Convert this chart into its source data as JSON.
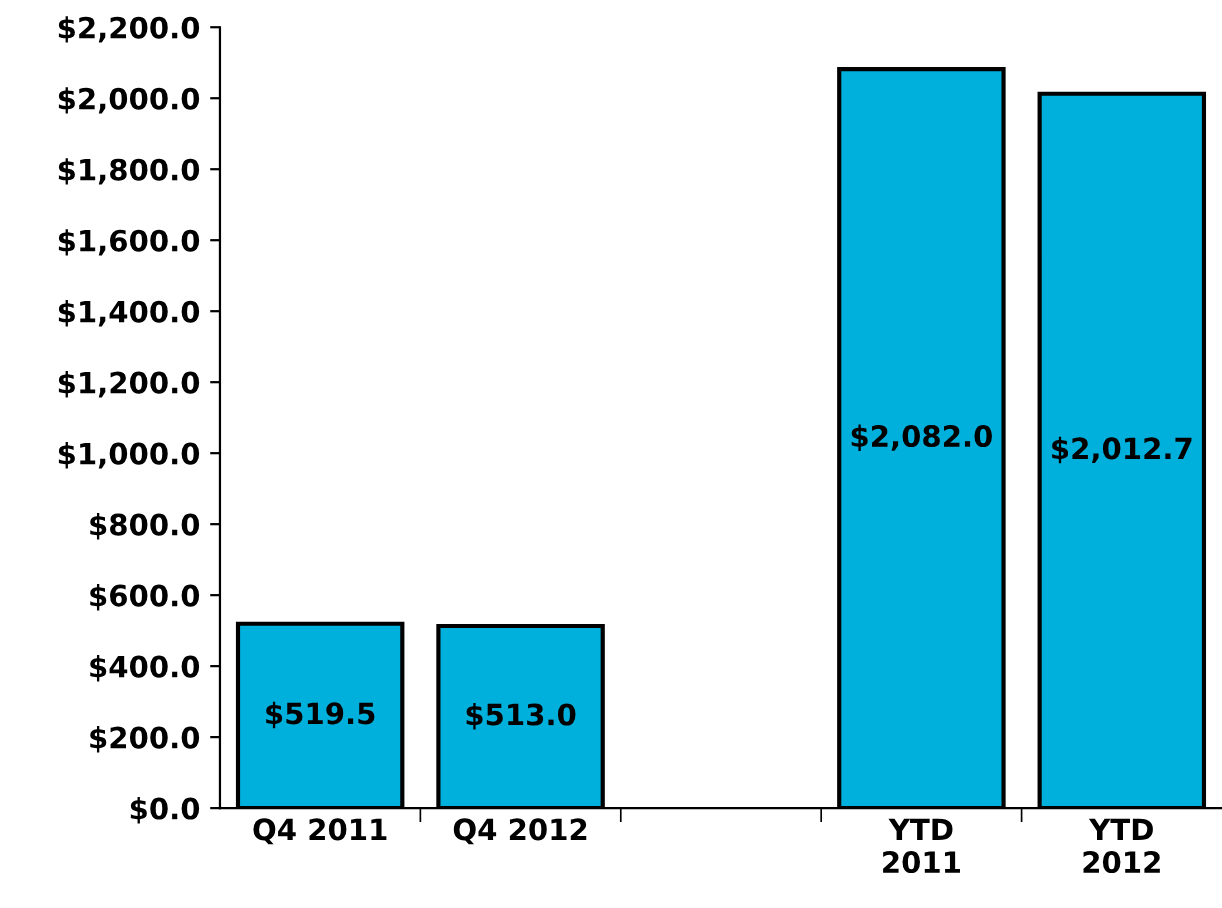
{
  "chart_data": {
    "type": "bar",
    "categories": [
      "Q4 2011",
      "Q4 2012",
      null,
      "YTD\n2011",
      "YTD\n2012"
    ],
    "values": [
      519.5,
      513.0,
      null,
      2082.0,
      2012.7
    ],
    "value_labels": [
      "$519.5",
      "$513.0",
      null,
      "$2,082.0",
      "$2,012.7"
    ],
    "color": "#00b0dc",
    "ylim": [
      0,
      2200
    ],
    "yticks": [
      {
        "value": 0,
        "label": "$0.0"
      },
      {
        "value": 200,
        "label": "$200.0"
      },
      {
        "value": 400,
        "label": "$400.0"
      },
      {
        "value": 600,
        "label": "$600.0"
      },
      {
        "value": 800,
        "label": "$800.0"
      },
      {
        "value": 1000,
        "label": "$1,000.0"
      },
      {
        "value": 1200,
        "label": "$1,200.0"
      },
      {
        "value": 1400,
        "label": "$1,400.0"
      },
      {
        "value": 1600,
        "label": "$1,600.0"
      },
      {
        "value": 1800,
        "label": "$1,800.0"
      },
      {
        "value": 2000,
        "label": "$2,000.0"
      },
      {
        "value": 2200,
        "label": "$2,200.0"
      }
    ],
    "grid": false,
    "legend": false
  }
}
